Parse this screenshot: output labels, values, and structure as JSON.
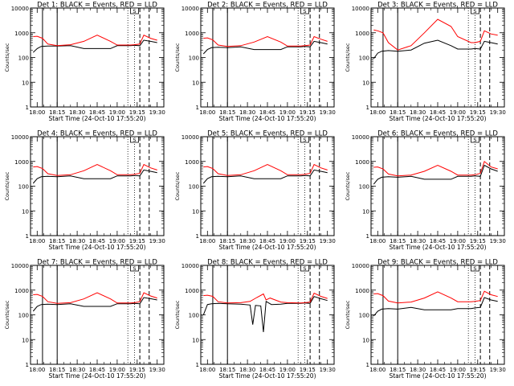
{
  "colors": {
    "events": "#000000",
    "lld": "#ff0000"
  },
  "chart_data": [
    {
      "type": "line",
      "title": "Det 1: BLACK = Events, RED = LLD",
      "xlabel": "Start Time (24-Oct-10 17:55:20)",
      "ylabel": "Counts/sec",
      "x_tick_labels": [
        "18:00",
        "18:15",
        "18:30",
        "18:45",
        "19:00",
        "19:15",
        "19:30"
      ],
      "y_tick_labels": [
        "1",
        "10",
        "100",
        "1000",
        "10000"
      ],
      "ylim": [
        1,
        10000
      ],
      "y_scale": "log",
      "flag_box": "S",
      "series": [
        {
          "name": "Events",
          "x": [
            "17:57",
            "18:00",
            "18:03",
            "18:08",
            "18:15",
            "18:25",
            "18:35",
            "18:45",
            "18:55",
            "19:00",
            "19:10",
            "19:13",
            "19:17",
            "19:20",
            "19:25",
            "19:30"
          ],
          "y": [
            160,
            230,
            280,
            290,
            290,
            300,
            230,
            230,
            230,
            300,
            300,
            310,
            300,
            500,
            450,
            400
          ]
        },
        {
          "name": "LLD",
          "x": [
            "17:57",
            "18:00",
            "18:04",
            "18:08",
            "18:15",
            "18:25",
            "18:35",
            "18:45",
            "18:55",
            "19:00",
            "19:10",
            "19:13",
            "19:17",
            "19:20",
            "19:25",
            "19:30"
          ],
          "y": [
            700,
            720,
            600,
            350,
            300,
            330,
            450,
            800,
            450,
            320,
            320,
            330,
            350,
            800,
            600,
            500
          ]
        }
      ]
    },
    {
      "type": "line",
      "title": "Det 2: BLACK = Events, RED = LLD",
      "xlabel": "Start Time (24-Oct-10 17:55:20)",
      "ylabel": "Counts/sec",
      "x_tick_labels": [
        "18:00",
        "18:15",
        "18:30",
        "18:45",
        "19:00",
        "19:15",
        "19:30"
      ],
      "y_tick_labels": [
        "1",
        "10",
        "100",
        "1000",
        "10000"
      ],
      "ylim": [
        1,
        10000
      ],
      "y_scale": "log",
      "flag_box": "S",
      "series": [
        {
          "name": "Events",
          "x": [
            "17:57",
            "18:00",
            "18:03",
            "18:08",
            "18:15",
            "18:25",
            "18:35",
            "18:45",
            "18:55",
            "19:00",
            "19:10",
            "19:13",
            "19:17",
            "19:20",
            "19:25",
            "19:30"
          ],
          "y": [
            140,
            210,
            250,
            260,
            250,
            270,
            210,
            210,
            210,
            270,
            270,
            280,
            270,
            450,
            400,
            350
          ]
        },
        {
          "name": "LLD",
          "x": [
            "17:57",
            "18:00",
            "18:04",
            "18:08",
            "18:15",
            "18:25",
            "18:35",
            "18:45",
            "18:55",
            "19:00",
            "19:10",
            "19:13",
            "19:17",
            "19:20",
            "19:25",
            "19:30"
          ],
          "y": [
            600,
            620,
            520,
            320,
            280,
            300,
            420,
            700,
            420,
            290,
            290,
            300,
            320,
            700,
            550,
            450
          ]
        }
      ]
    },
    {
      "type": "line",
      "title": "Det 3: BLACK = Events, RED = LLD",
      "xlabel": "Start Time (24-Oct-10 17:55:20)",
      "ylabel": "Counts/sec",
      "x_tick_labels": [
        "18:00",
        "18:15",
        "18:30",
        "18:45",
        "19:00",
        "19:15",
        "19:30"
      ],
      "y_tick_labels": [
        "1",
        "10",
        "100",
        "1000",
        "10000"
      ],
      "ylim": [
        1,
        10000
      ],
      "y_scale": "log",
      "flag_box": "S",
      "series": [
        {
          "name": "Events",
          "x": [
            "17:57",
            "18:00",
            "18:03",
            "18:08",
            "18:15",
            "18:25",
            "18:35",
            "18:45",
            "18:55",
            "19:00",
            "19:10",
            "19:13",
            "19:17",
            "19:20",
            "19:25",
            "19:30"
          ],
          "y": [
            90,
            150,
            180,
            190,
            180,
            200,
            380,
            500,
            300,
            220,
            220,
            230,
            220,
            450,
            400,
            350
          ]
        },
        {
          "name": "LLD",
          "x": [
            "17:57",
            "18:00",
            "18:04",
            "18:08",
            "18:15",
            "18:25",
            "18:35",
            "18:45",
            "18:55",
            "19:00",
            "19:10",
            "19:13",
            "19:17",
            "19:20",
            "19:25",
            "19:30"
          ],
          "y": [
            1300,
            1200,
            1000,
            400,
            200,
            300,
            1000,
            3500,
            1800,
            700,
            400,
            400,
            450,
            1200,
            900,
            800
          ]
        }
      ]
    },
    {
      "type": "line",
      "title": "Det 4: BLACK = Events, RED = LLD",
      "xlabel": "Start Time (24-Oct-10 17:55:20)",
      "ylabel": "Counts/sec",
      "x_tick_labels": [
        "18:00",
        "18:15",
        "18:30",
        "18:45",
        "19:00",
        "19:15",
        "19:30"
      ],
      "y_tick_labels": [
        "1",
        "10",
        "100",
        "1000",
        "10000"
      ],
      "ylim": [
        1,
        10000
      ],
      "y_scale": "log",
      "flag_box": "S",
      "series": [
        {
          "name": "Events",
          "x": [
            "17:57",
            "18:00",
            "18:03",
            "18:08",
            "18:15",
            "18:25",
            "18:35",
            "18:45",
            "18:55",
            "19:00",
            "19:10",
            "19:13",
            "19:17",
            "19:20",
            "19:25",
            "19:30"
          ],
          "y": [
            130,
            200,
            240,
            250,
            240,
            260,
            200,
            200,
            200,
            260,
            260,
            270,
            260,
            450,
            400,
            350
          ]
        },
        {
          "name": "LLD",
          "x": [
            "17:57",
            "18:00",
            "18:04",
            "18:08",
            "18:15",
            "18:25",
            "18:35",
            "18:45",
            "18:55",
            "19:00",
            "19:10",
            "19:13",
            "19:17",
            "19:20",
            "19:25",
            "19:30"
          ],
          "y": [
            600,
            620,
            520,
            320,
            270,
            290,
            420,
            750,
            420,
            290,
            290,
            300,
            330,
            750,
            550,
            450
          ]
        }
      ]
    },
    {
      "type": "line",
      "title": "Det 5: BLACK = Events, RED = LLD",
      "xlabel": "Start Time (24-Oct-10 17:55:20)",
      "ylabel": "Counts/sec",
      "x_tick_labels": [
        "18:00",
        "18:15",
        "18:30",
        "18:45",
        "19:00",
        "19:15",
        "19:30"
      ],
      "y_tick_labels": [
        "1",
        "10",
        "100",
        "1000",
        "10000"
      ],
      "ylim": [
        1,
        10000
      ],
      "y_scale": "log",
      "flag_box": "S",
      "series": [
        {
          "name": "Events",
          "x": [
            "17:57",
            "18:00",
            "18:03",
            "18:08",
            "18:15",
            "18:25",
            "18:35",
            "18:45",
            "18:55",
            "19:00",
            "19:10",
            "19:13",
            "19:17",
            "19:20",
            "19:25",
            "19:30"
          ],
          "y": [
            130,
            200,
            240,
            250,
            240,
            260,
            200,
            200,
            200,
            260,
            260,
            270,
            260,
            450,
            400,
            350
          ]
        },
        {
          "name": "LLD",
          "x": [
            "17:57",
            "18:00",
            "18:04",
            "18:08",
            "18:15",
            "18:25",
            "18:35",
            "18:45",
            "18:55",
            "19:00",
            "19:10",
            "19:13",
            "19:17",
            "19:20",
            "19:25",
            "19:30"
          ],
          "y": [
            600,
            620,
            520,
            320,
            270,
            290,
            420,
            750,
            420,
            290,
            290,
            300,
            330,
            750,
            550,
            450
          ]
        }
      ]
    },
    {
      "type": "line",
      "title": "Det 6: BLACK = Events, RED = LLD",
      "xlabel": "Start Time (24-Oct-10 17:55:20)",
      "ylabel": "Counts/sec",
      "x_tick_labels": [
        "18:00",
        "18:15",
        "18:30",
        "18:45",
        "19:00",
        "19:15",
        "19:30"
      ],
      "y_tick_labels": [
        "1",
        "10",
        "100",
        "1000",
        "10000"
      ],
      "ylim": [
        1,
        10000
      ],
      "y_scale": "log",
      "flag_box": "S",
      "series": [
        {
          "name": "Events",
          "x": [
            "17:57",
            "18:00",
            "18:03",
            "18:08",
            "18:15",
            "18:25",
            "18:35",
            "18:45",
            "18:55",
            "19:00",
            "19:10",
            "19:13",
            "19:17",
            "19:20",
            "19:25",
            "19:30"
          ],
          "y": [
            120,
            190,
            230,
            240,
            230,
            250,
            190,
            190,
            190,
            250,
            250,
            260,
            250,
            700,
            500,
            400
          ]
        },
        {
          "name": "LLD",
          "x": [
            "17:57",
            "18:00",
            "18:04",
            "18:08",
            "18:15",
            "18:25",
            "18:35",
            "18:45",
            "18:55",
            "19:00",
            "19:10",
            "19:13",
            "19:17",
            "19:20",
            "19:25",
            "19:30"
          ],
          "y": [
            580,
            600,
            500,
            310,
            260,
            280,
            400,
            700,
            400,
            280,
            280,
            290,
            330,
            1000,
            600,
            500
          ]
        }
      ]
    },
    {
      "type": "line",
      "title": "Det 7: BLACK = Events, RED = LLD",
      "xlabel": "Start Time (24-Oct-10 17:55:20)",
      "ylabel": "Counts/sec",
      "x_tick_labels": [
        "18:00",
        "18:15",
        "18:30",
        "18:45",
        "19:00",
        "19:15",
        "19:30"
      ],
      "y_tick_labels": [
        "1",
        "10",
        "100",
        "1000",
        "10000"
      ],
      "ylim": [
        1,
        10000
      ],
      "y_scale": "log",
      "flag_box": "S",
      "series": [
        {
          "name": "Events",
          "x": [
            "17:57",
            "18:00",
            "18:03",
            "18:08",
            "18:15",
            "18:25",
            "18:35",
            "18:45",
            "18:55",
            "19:00",
            "19:10",
            "19:13",
            "19:17",
            "19:20",
            "19:25",
            "19:30"
          ],
          "y": [
            140,
            220,
            260,
            270,
            260,
            280,
            220,
            220,
            220,
            280,
            280,
            290,
            280,
            500,
            450,
            400
          ]
        },
        {
          "name": "LLD",
          "x": [
            "17:57",
            "18:00",
            "18:04",
            "18:08",
            "18:15",
            "18:25",
            "18:35",
            "18:45",
            "18:55",
            "19:00",
            "19:10",
            "19:13",
            "19:17",
            "19:20",
            "19:25",
            "19:30"
          ],
          "y": [
            650,
            670,
            560,
            340,
            290,
            310,
            440,
            780,
            440,
            300,
            300,
            310,
            340,
            780,
            580,
            480
          ]
        }
      ]
    },
    {
      "type": "line",
      "title": "Det 8: BLACK = Events, RED = LLD",
      "xlabel": "Start Time (24-Oct-10 17:55:20)",
      "ylabel": "Counts/sec",
      "x_tick_labels": [
        "18:00",
        "18:15",
        "18:30",
        "18:45",
        "19:00",
        "19:15",
        "19:30"
      ],
      "y_tick_labels": [
        "1",
        "10",
        "100",
        "1000",
        "10000"
      ],
      "ylim": [
        1,
        10000
      ],
      "y_scale": "log",
      "flag_box": "S",
      "series": [
        {
          "name": "Events",
          "x": [
            "17:57",
            "18:00",
            "18:03",
            "18:08",
            "18:15",
            "18:25",
            "18:32",
            "18:34",
            "18:36",
            "18:40",
            "18:42",
            "18:44",
            "18:46",
            "18:48",
            "18:55",
            "19:00",
            "19:10",
            "19:13",
            "19:17",
            "19:20",
            "19:25",
            "19:30"
          ],
          "y": [
            100,
            260,
            280,
            290,
            280,
            270,
            250,
            40,
            240,
            230,
            20,
            350,
            300,
            260,
            270,
            290,
            290,
            300,
            290,
            550,
            450,
            380
          ]
        },
        {
          "name": "LLD",
          "x": [
            "17:57",
            "18:00",
            "18:04",
            "18:08",
            "18:15",
            "18:25",
            "18:32",
            "18:37",
            "18:42",
            "18:44",
            "18:47",
            "18:55",
            "19:00",
            "19:10",
            "19:13",
            "19:17",
            "19:20",
            "19:25",
            "19:30"
          ],
          "y": [
            600,
            620,
            560,
            340,
            300,
            310,
            350,
            500,
            700,
            400,
            480,
            330,
            310,
            300,
            310,
            330,
            750,
            560,
            460
          ]
        }
      ]
    },
    {
      "type": "line",
      "title": "Det 9: BLACK = Events, RED = LLD",
      "xlabel": "Start Time (24-Oct-10 17:55:20)",
      "ylabel": "Counts/sec",
      "x_tick_labels": [
        "18:00",
        "18:15",
        "18:30",
        "18:45",
        "19:00",
        "19:15",
        "19:30"
      ],
      "y_tick_labels": [
        "1",
        "10",
        "100",
        "1000",
        "10000"
      ],
      "ylim": [
        1,
        10000
      ],
      "y_scale": "log",
      "flag_box": "S",
      "series": [
        {
          "name": "Events",
          "x": [
            "17:57",
            "18:00",
            "18:03",
            "18:08",
            "18:15",
            "18:25",
            "18:35",
            "18:45",
            "18:55",
            "19:00",
            "19:10",
            "19:13",
            "19:17",
            "19:20",
            "19:25",
            "19:30"
          ],
          "y": [
            90,
            140,
            170,
            180,
            170,
            200,
            160,
            160,
            160,
            180,
            180,
            190,
            200,
            500,
            400,
            350
          ]
        },
        {
          "name": "LLD",
          "x": [
            "17:57",
            "18:00",
            "18:04",
            "18:08",
            "18:15",
            "18:25",
            "18:35",
            "18:45",
            "18:55",
            "19:00",
            "19:10",
            "19:13",
            "19:17",
            "19:20",
            "19:25",
            "19:30"
          ],
          "y": [
            700,
            720,
            600,
            360,
            300,
            330,
            480,
            850,
            480,
            340,
            340,
            350,
            380,
            900,
            650,
            550
          ]
        }
      ]
    }
  ],
  "markers": {
    "solid": [
      "18:04",
      "18:15"
    ],
    "dotted": [
      "19:08",
      "19:13"
    ],
    "dashed": [
      "19:17",
      "19:24"
    ]
  }
}
